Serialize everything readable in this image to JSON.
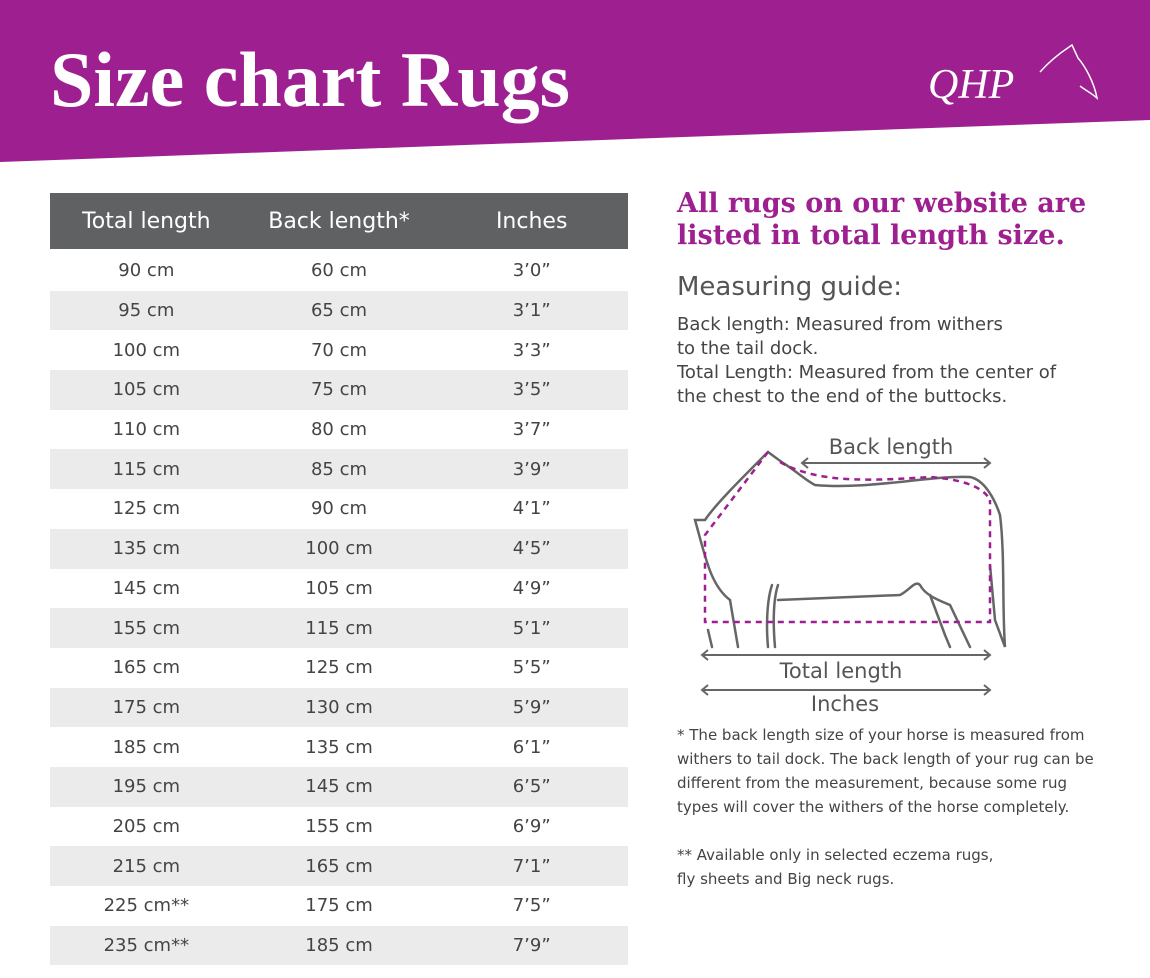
{
  "header": {
    "title": "Size chart Rugs",
    "logo": "QHP"
  },
  "table": {
    "columns": [
      "Total length",
      "Back length*",
      "Inches"
    ],
    "rows": [
      [
        "90 cm",
        "60 cm",
        "3’0”"
      ],
      [
        "95 cm",
        "65 cm",
        "3’1”"
      ],
      [
        "100 cm",
        "70 cm",
        "3’3”"
      ],
      [
        "105 cm",
        "75 cm",
        "3’5”"
      ],
      [
        "110 cm",
        "80 cm",
        "3’7”"
      ],
      [
        "115 cm",
        "85 cm",
        "3’9”"
      ],
      [
        "125 cm",
        "90 cm",
        "4’1”"
      ],
      [
        "135 cm",
        "100 cm",
        "4’5”"
      ],
      [
        "145 cm",
        "105 cm",
        "4’9”"
      ],
      [
        "155 cm",
        "115 cm",
        "5’1”"
      ],
      [
        "165 cm",
        "125 cm",
        "5’5”"
      ],
      [
        "175 cm",
        "130 cm",
        "5’9”"
      ],
      [
        "185 cm",
        "135 cm",
        "6’1”"
      ],
      [
        "195 cm",
        "145 cm",
        "6’5”"
      ],
      [
        "205 cm",
        "155 cm",
        "6’9”"
      ],
      [
        "215 cm",
        "165 cm",
        "7’1”"
      ],
      [
        "225 cm**",
        "175 cm",
        "7’5”"
      ],
      [
        "235 cm**",
        "185 cm",
        "7’9”"
      ]
    ]
  },
  "info": {
    "headline": [
      "All rugs on our website are",
      "listed in total length size."
    ],
    "guide_title": "Measuring guide:",
    "guide_lines": [
      "Back length: Measured from withers",
      "to the tail dock.",
      "Total Length: Measured from the center of",
      "the chest to the end of the buttocks."
    ],
    "diagram": {
      "back_length": "Back length",
      "total_length": "Total length",
      "inches": "Inches"
    },
    "footnote1": [
      "* The back length size of your horse is measured from",
      "withers to tail dock. The back length of your rug can be",
      "different from the measurement, because some rug",
      "types will cover the withers of the horse completely."
    ],
    "footnote2": [
      "** Available only in selected eczema rugs,",
      "fly sheets and Big neck rugs."
    ]
  }
}
